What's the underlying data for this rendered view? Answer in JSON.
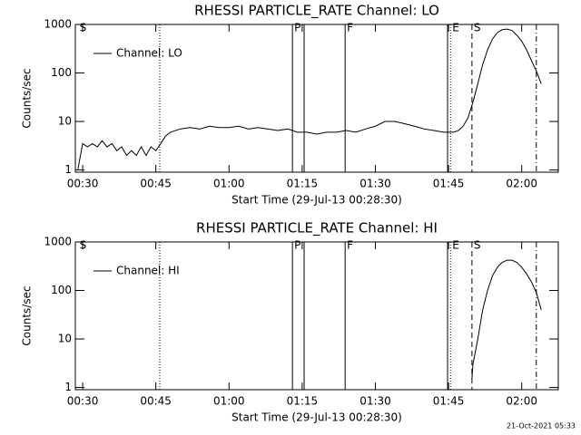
{
  "chart_data": [
    {
      "type": "line",
      "title": "RHESSI PARTICLE_RATE Channel: LO",
      "xlabel": "Start Time (29-Jul-13 00:28:30)",
      "ylabel": "Counts/sec",
      "log_y": true,
      "xlim": [
        28.5,
        127.5
      ],
      "ylim": [
        0.9,
        1000
      ],
      "yticks": [
        1,
        10,
        100,
        1000
      ],
      "xticks": [
        {
          "value": 30,
          "label": "00:30"
        },
        {
          "value": 45,
          "label": "00:45"
        },
        {
          "value": 60,
          "label": "01:00"
        },
        {
          "value": 75,
          "label": "01:15"
        },
        {
          "value": 90,
          "label": "01:30"
        },
        {
          "value": 105,
          "label": "01:45"
        },
        {
          "value": 120,
          "label": "02:00"
        }
      ],
      "series": [
        {
          "name": "Channel: LO",
          "color": "#000000",
          "x": [
            29,
            30,
            31,
            32,
            33,
            34,
            35,
            36,
            37,
            38,
            39,
            40,
            41,
            42,
            43,
            44,
            45,
            46,
            47,
            48,
            50,
            52,
            54,
            56,
            58,
            60,
            62,
            64,
            66,
            68,
            70,
            72,
            74,
            76,
            78,
            80,
            82,
            84,
            86,
            88,
            90,
            92,
            94,
            96,
            98,
            100,
            102,
            104,
            106,
            107,
            108,
            109,
            110,
            111,
            112,
            113,
            114,
            115,
            116,
            117,
            118,
            119,
            120,
            121,
            122,
            123,
            124
          ],
          "values": [
            1,
            3.5,
            3,
            3.5,
            3,
            4,
            3,
            3.5,
            2.5,
            3,
            2,
            2.5,
            2,
            3,
            2,
            3,
            2.5,
            3.5,
            5,
            6,
            7,
            7.5,
            7,
            8,
            7.5,
            7.5,
            8,
            7,
            7.5,
            7,
            6.5,
            7,
            6,
            6,
            5.5,
            6,
            6,
            6.5,
            6,
            7,
            8,
            10,
            10,
            9,
            8,
            7,
            6.5,
            6,
            6,
            6.5,
            8,
            12,
            25,
            60,
            150,
            300,
            500,
            680,
            780,
            800,
            750,
            600,
            450,
            300,
            180,
            110,
            60
          ]
        }
      ],
      "markers": [
        {
          "x": 29,
          "label": "S"
        },
        {
          "x": 45.8,
          "style": "dotted"
        },
        {
          "x": 73.0,
          "style": "solid",
          "label": "P"
        },
        {
          "x": 75.4,
          "style": "solid"
        },
        {
          "x": 83.8,
          "style": "solid",
          "label": "F"
        },
        {
          "x": 104.8,
          "style": "solid"
        },
        {
          "x": 105.4,
          "style": "dotted",
          "label": "E"
        },
        {
          "x": 109.8,
          "style": "dashed",
          "label": "S"
        },
        {
          "x": 123.0,
          "style": "dashdot"
        }
      ]
    },
    {
      "type": "line",
      "title": "RHESSI PARTICLE_RATE Channel: HI",
      "xlabel": "Start Time (29-Jul-13 00:28:30)",
      "ylabel": "Counts/sec",
      "log_y": true,
      "xlim": [
        28.5,
        127.5
      ],
      "ylim": [
        0.9,
        1000
      ],
      "yticks": [
        1,
        10,
        100,
        1000
      ],
      "xticks": [
        {
          "value": 30,
          "label": "00:30"
        },
        {
          "value": 45,
          "label": "00:45"
        },
        {
          "value": 60,
          "label": "01:00"
        },
        {
          "value": 75,
          "label": "01:15"
        },
        {
          "value": 90,
          "label": "01:30"
        },
        {
          "value": 105,
          "label": "01:45"
        },
        {
          "value": 120,
          "label": "02:00"
        }
      ],
      "series": [
        {
          "name": "Channel: HI",
          "color": "#000000",
          "x": [
            109.8,
            110,
            111,
            112,
            113,
            114,
            115,
            116,
            117,
            118,
            119,
            120,
            121,
            122,
            123,
            124
          ],
          "values": [
            1.5,
            3,
            10,
            40,
            100,
            200,
            300,
            380,
            420,
            420,
            380,
            300,
            220,
            150,
            90,
            40
          ]
        }
      ],
      "markers": [
        {
          "x": 29,
          "label": "S"
        },
        {
          "x": 45.8,
          "style": "dotted"
        },
        {
          "x": 73.0,
          "style": "solid",
          "label": "P"
        },
        {
          "x": 75.4,
          "style": "solid"
        },
        {
          "x": 83.8,
          "style": "solid",
          "label": "F"
        },
        {
          "x": 104.8,
          "style": "solid"
        },
        {
          "x": 105.4,
          "style": "dotted",
          "label": "E"
        },
        {
          "x": 109.8,
          "style": "dashed",
          "label": "S"
        },
        {
          "x": 123.0,
          "style": "dashdot"
        }
      ]
    }
  ],
  "footer": "21-Oct-2021 05:33"
}
